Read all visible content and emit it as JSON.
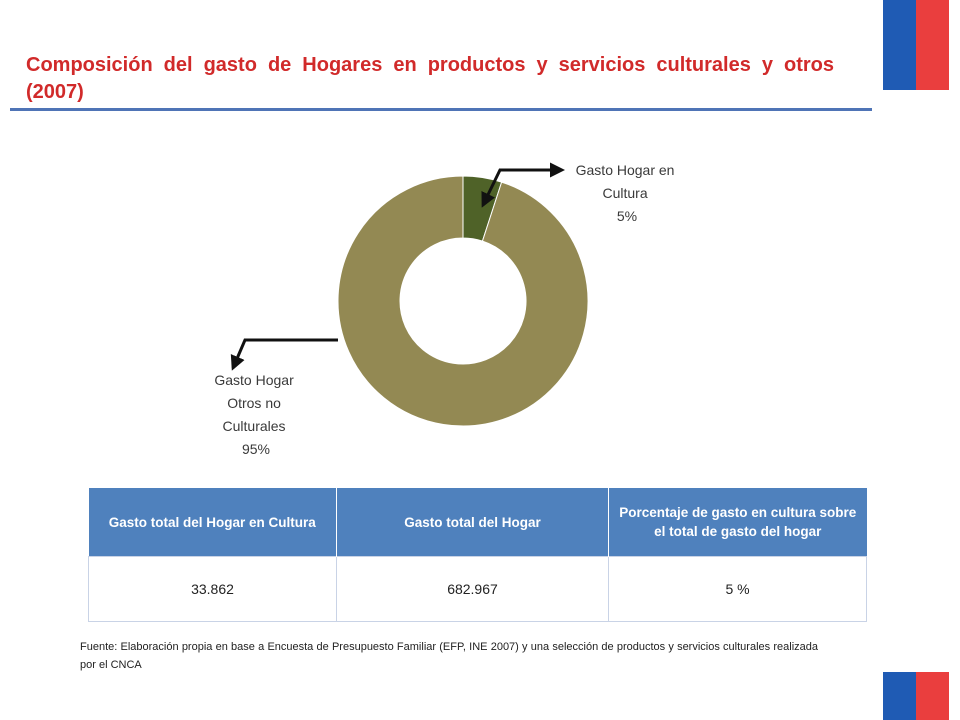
{
  "colors": {
    "title": "#d12a2a",
    "flag_blue": "#1f5bb4",
    "flag_red": "#ea3e3e",
    "table_header": "#4f81bd",
    "culture_slice": "#4f6228",
    "other_slice": "#938953",
    "callout": "#111111"
  },
  "header": {
    "title": "Composición del gasto de Hogares en productos y servicios culturales y otros (2007)"
  },
  "chart_data": {
    "type": "pie",
    "style": "doughnut",
    "start_angle_deg": 0,
    "direction": "clockwise",
    "slices": [
      {
        "name": "Gasto Hogar en Cultura",
        "value": 5,
        "label_lines": [
          "Gasto Hogar en",
          "Cultura",
          "5%"
        ],
        "color": "#4f6228"
      },
      {
        "name": "Gasto Hogar Otros no Culturales",
        "value": 95,
        "label_lines": [
          "Gasto Hogar",
          "Otros no",
          "Culturales",
          "95%"
        ],
        "color": "#938953"
      }
    ]
  },
  "table": {
    "headers": [
      "Gasto total del Hogar en Cultura",
      "Gasto total del Hogar",
      "Porcentaje de gasto en cultura sobre el total de gasto del hogar"
    ],
    "row": [
      "33.862",
      "682.967",
      "5 %"
    ]
  },
  "source": {
    "text": "Fuente: Elaboración propia en base a Encuesta de Presupuesto Familiar (EFP, INE 2007) y una selección de productos y servicios culturales realizada por el CNCA"
  }
}
